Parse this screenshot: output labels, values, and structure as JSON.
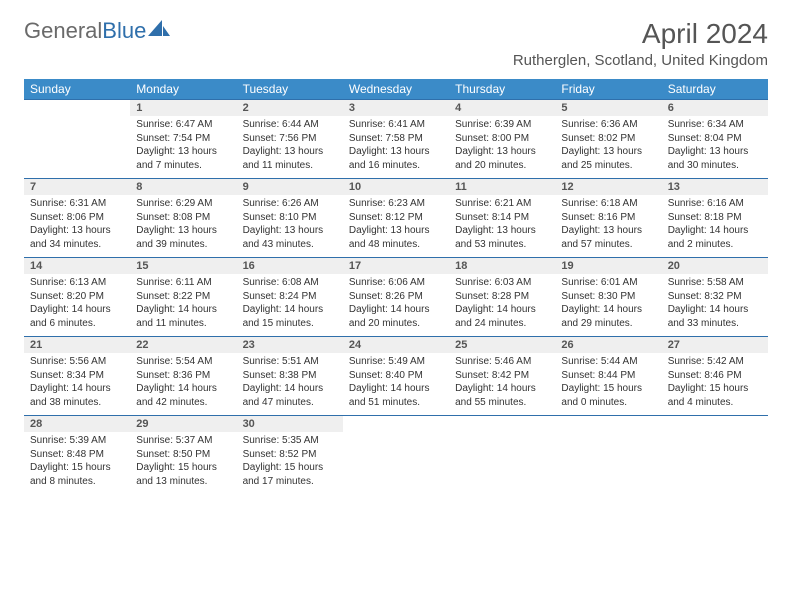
{
  "brand": {
    "part1": "General",
    "part2": "Blue"
  },
  "title": "April 2024",
  "location": "Rutherglen, Scotland, United Kingdom",
  "colors": {
    "header_bg": "#3b8bc8",
    "header_text": "#ffffff",
    "daynum_bg": "#efefef",
    "rule": "#2f6fab",
    "body_text": "#333333",
    "title_text": "#555555",
    "logo_gray": "#6a6a6a",
    "logo_blue": "#2f6fab"
  },
  "weekdays": [
    "Sunday",
    "Monday",
    "Tuesday",
    "Wednesday",
    "Thursday",
    "Friday",
    "Saturday"
  ],
  "weeks": [
    [
      null,
      {
        "n": "1",
        "sr": "6:47 AM",
        "ss": "7:54 PM",
        "dl": "13 hours and 7 minutes."
      },
      {
        "n": "2",
        "sr": "6:44 AM",
        "ss": "7:56 PM",
        "dl": "13 hours and 11 minutes."
      },
      {
        "n": "3",
        "sr": "6:41 AM",
        "ss": "7:58 PM",
        "dl": "13 hours and 16 minutes."
      },
      {
        "n": "4",
        "sr": "6:39 AM",
        "ss": "8:00 PM",
        "dl": "13 hours and 20 minutes."
      },
      {
        "n": "5",
        "sr": "6:36 AM",
        "ss": "8:02 PM",
        "dl": "13 hours and 25 minutes."
      },
      {
        "n": "6",
        "sr": "6:34 AM",
        "ss": "8:04 PM",
        "dl": "13 hours and 30 minutes."
      }
    ],
    [
      {
        "n": "7",
        "sr": "6:31 AM",
        "ss": "8:06 PM",
        "dl": "13 hours and 34 minutes."
      },
      {
        "n": "8",
        "sr": "6:29 AM",
        "ss": "8:08 PM",
        "dl": "13 hours and 39 minutes."
      },
      {
        "n": "9",
        "sr": "6:26 AM",
        "ss": "8:10 PM",
        "dl": "13 hours and 43 minutes."
      },
      {
        "n": "10",
        "sr": "6:23 AM",
        "ss": "8:12 PM",
        "dl": "13 hours and 48 minutes."
      },
      {
        "n": "11",
        "sr": "6:21 AM",
        "ss": "8:14 PM",
        "dl": "13 hours and 53 minutes."
      },
      {
        "n": "12",
        "sr": "6:18 AM",
        "ss": "8:16 PM",
        "dl": "13 hours and 57 minutes."
      },
      {
        "n": "13",
        "sr": "6:16 AM",
        "ss": "8:18 PM",
        "dl": "14 hours and 2 minutes."
      }
    ],
    [
      {
        "n": "14",
        "sr": "6:13 AM",
        "ss": "8:20 PM",
        "dl": "14 hours and 6 minutes."
      },
      {
        "n": "15",
        "sr": "6:11 AM",
        "ss": "8:22 PM",
        "dl": "14 hours and 11 minutes."
      },
      {
        "n": "16",
        "sr": "6:08 AM",
        "ss": "8:24 PM",
        "dl": "14 hours and 15 minutes."
      },
      {
        "n": "17",
        "sr": "6:06 AM",
        "ss": "8:26 PM",
        "dl": "14 hours and 20 minutes."
      },
      {
        "n": "18",
        "sr": "6:03 AM",
        "ss": "8:28 PM",
        "dl": "14 hours and 24 minutes."
      },
      {
        "n": "19",
        "sr": "6:01 AM",
        "ss": "8:30 PM",
        "dl": "14 hours and 29 minutes."
      },
      {
        "n": "20",
        "sr": "5:58 AM",
        "ss": "8:32 PM",
        "dl": "14 hours and 33 minutes."
      }
    ],
    [
      {
        "n": "21",
        "sr": "5:56 AM",
        "ss": "8:34 PM",
        "dl": "14 hours and 38 minutes."
      },
      {
        "n": "22",
        "sr": "5:54 AM",
        "ss": "8:36 PM",
        "dl": "14 hours and 42 minutes."
      },
      {
        "n": "23",
        "sr": "5:51 AM",
        "ss": "8:38 PM",
        "dl": "14 hours and 47 minutes."
      },
      {
        "n": "24",
        "sr": "5:49 AM",
        "ss": "8:40 PM",
        "dl": "14 hours and 51 minutes."
      },
      {
        "n": "25",
        "sr": "5:46 AM",
        "ss": "8:42 PM",
        "dl": "14 hours and 55 minutes."
      },
      {
        "n": "26",
        "sr": "5:44 AM",
        "ss": "8:44 PM",
        "dl": "15 hours and 0 minutes."
      },
      {
        "n": "27",
        "sr": "5:42 AM",
        "ss": "8:46 PM",
        "dl": "15 hours and 4 minutes."
      }
    ],
    [
      {
        "n": "28",
        "sr": "5:39 AM",
        "ss": "8:48 PM",
        "dl": "15 hours and 8 minutes."
      },
      {
        "n": "29",
        "sr": "5:37 AM",
        "ss": "8:50 PM",
        "dl": "15 hours and 13 minutes."
      },
      {
        "n": "30",
        "sr": "5:35 AM",
        "ss": "8:52 PM",
        "dl": "15 hours and 17 minutes."
      },
      null,
      null,
      null,
      null
    ]
  ],
  "labels": {
    "sunrise": "Sunrise:",
    "sunset": "Sunset:",
    "daylight": "Daylight:"
  }
}
